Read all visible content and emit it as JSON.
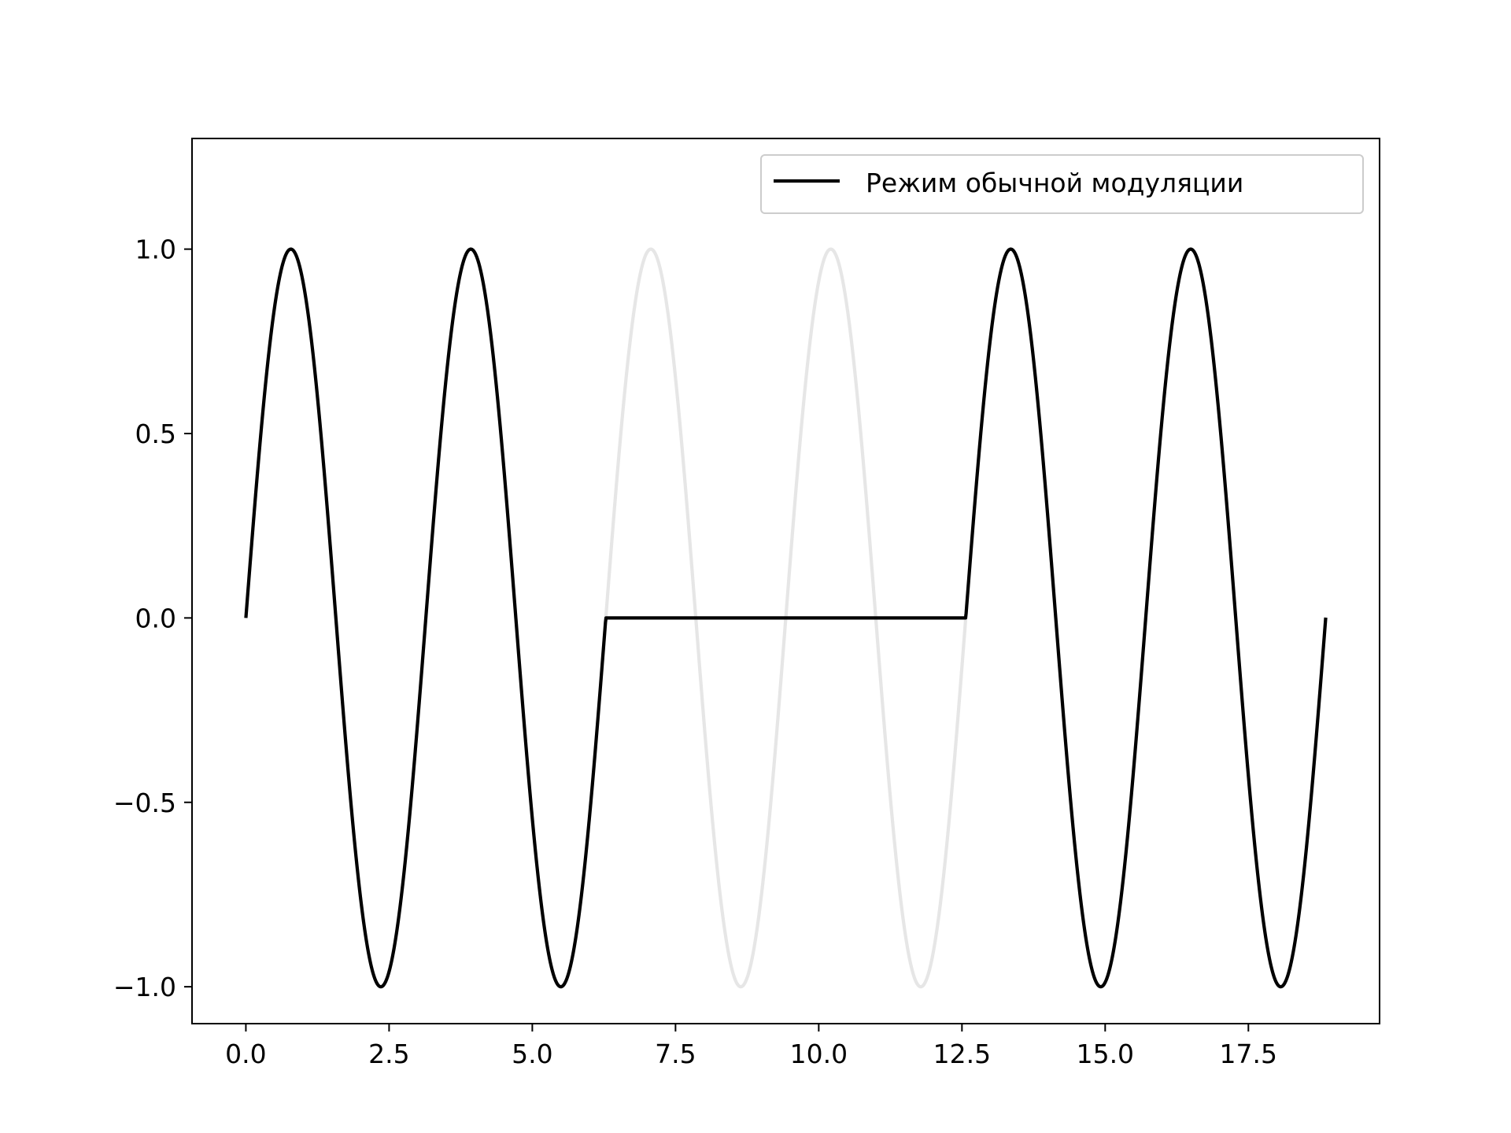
{
  "chart_data": {
    "type": "line",
    "title": "",
    "xlabel": "",
    "ylabel": "",
    "xlim": [
      -0.94,
      19.79
    ],
    "ylim": [
      -1.1,
      1.3
    ],
    "x_ticks": [
      {
        "value": 0.0,
        "label": "0.0"
      },
      {
        "value": 2.5,
        "label": "2.5"
      },
      {
        "value": 5.0,
        "label": "5.0"
      },
      {
        "value": 7.5,
        "label": "7.5"
      },
      {
        "value": 10.0,
        "label": "10.0"
      },
      {
        "value": 12.5,
        "label": "12.5"
      },
      {
        "value": 15.0,
        "label": "15.0"
      },
      {
        "value": 17.5,
        "label": "17.5"
      }
    ],
    "y_ticks": [
      {
        "value": -1.0,
        "label": "−1.0"
      },
      {
        "value": -0.5,
        "label": "−0.5"
      },
      {
        "value": 0.0,
        "label": "0.0"
      },
      {
        "value": 0.5,
        "label": "0.5"
      },
      {
        "value": 1.0,
        "label": "1.0"
      }
    ],
    "grid": false,
    "legend": {
      "placement": "upper-right",
      "entries": [
        {
          "label": "Режим обычной модуляции",
          "color": "#000000"
        }
      ]
    },
    "series": [
      {
        "name": "",
        "color": "#e6e6e6",
        "function": "sin(2x)",
        "x_range": [
          0,
          18.85
        ],
        "note_visible_only_where_not_covered": true
      },
      {
        "name": "Режим обычной модуляции",
        "color": "#000000",
        "function": "sin(2x) where x < 6.283 or x > 12.566, else 0",
        "x_range": [
          0,
          18.85
        ],
        "gap_range": [
          6.283,
          12.566
        ]
      }
    ]
  }
}
